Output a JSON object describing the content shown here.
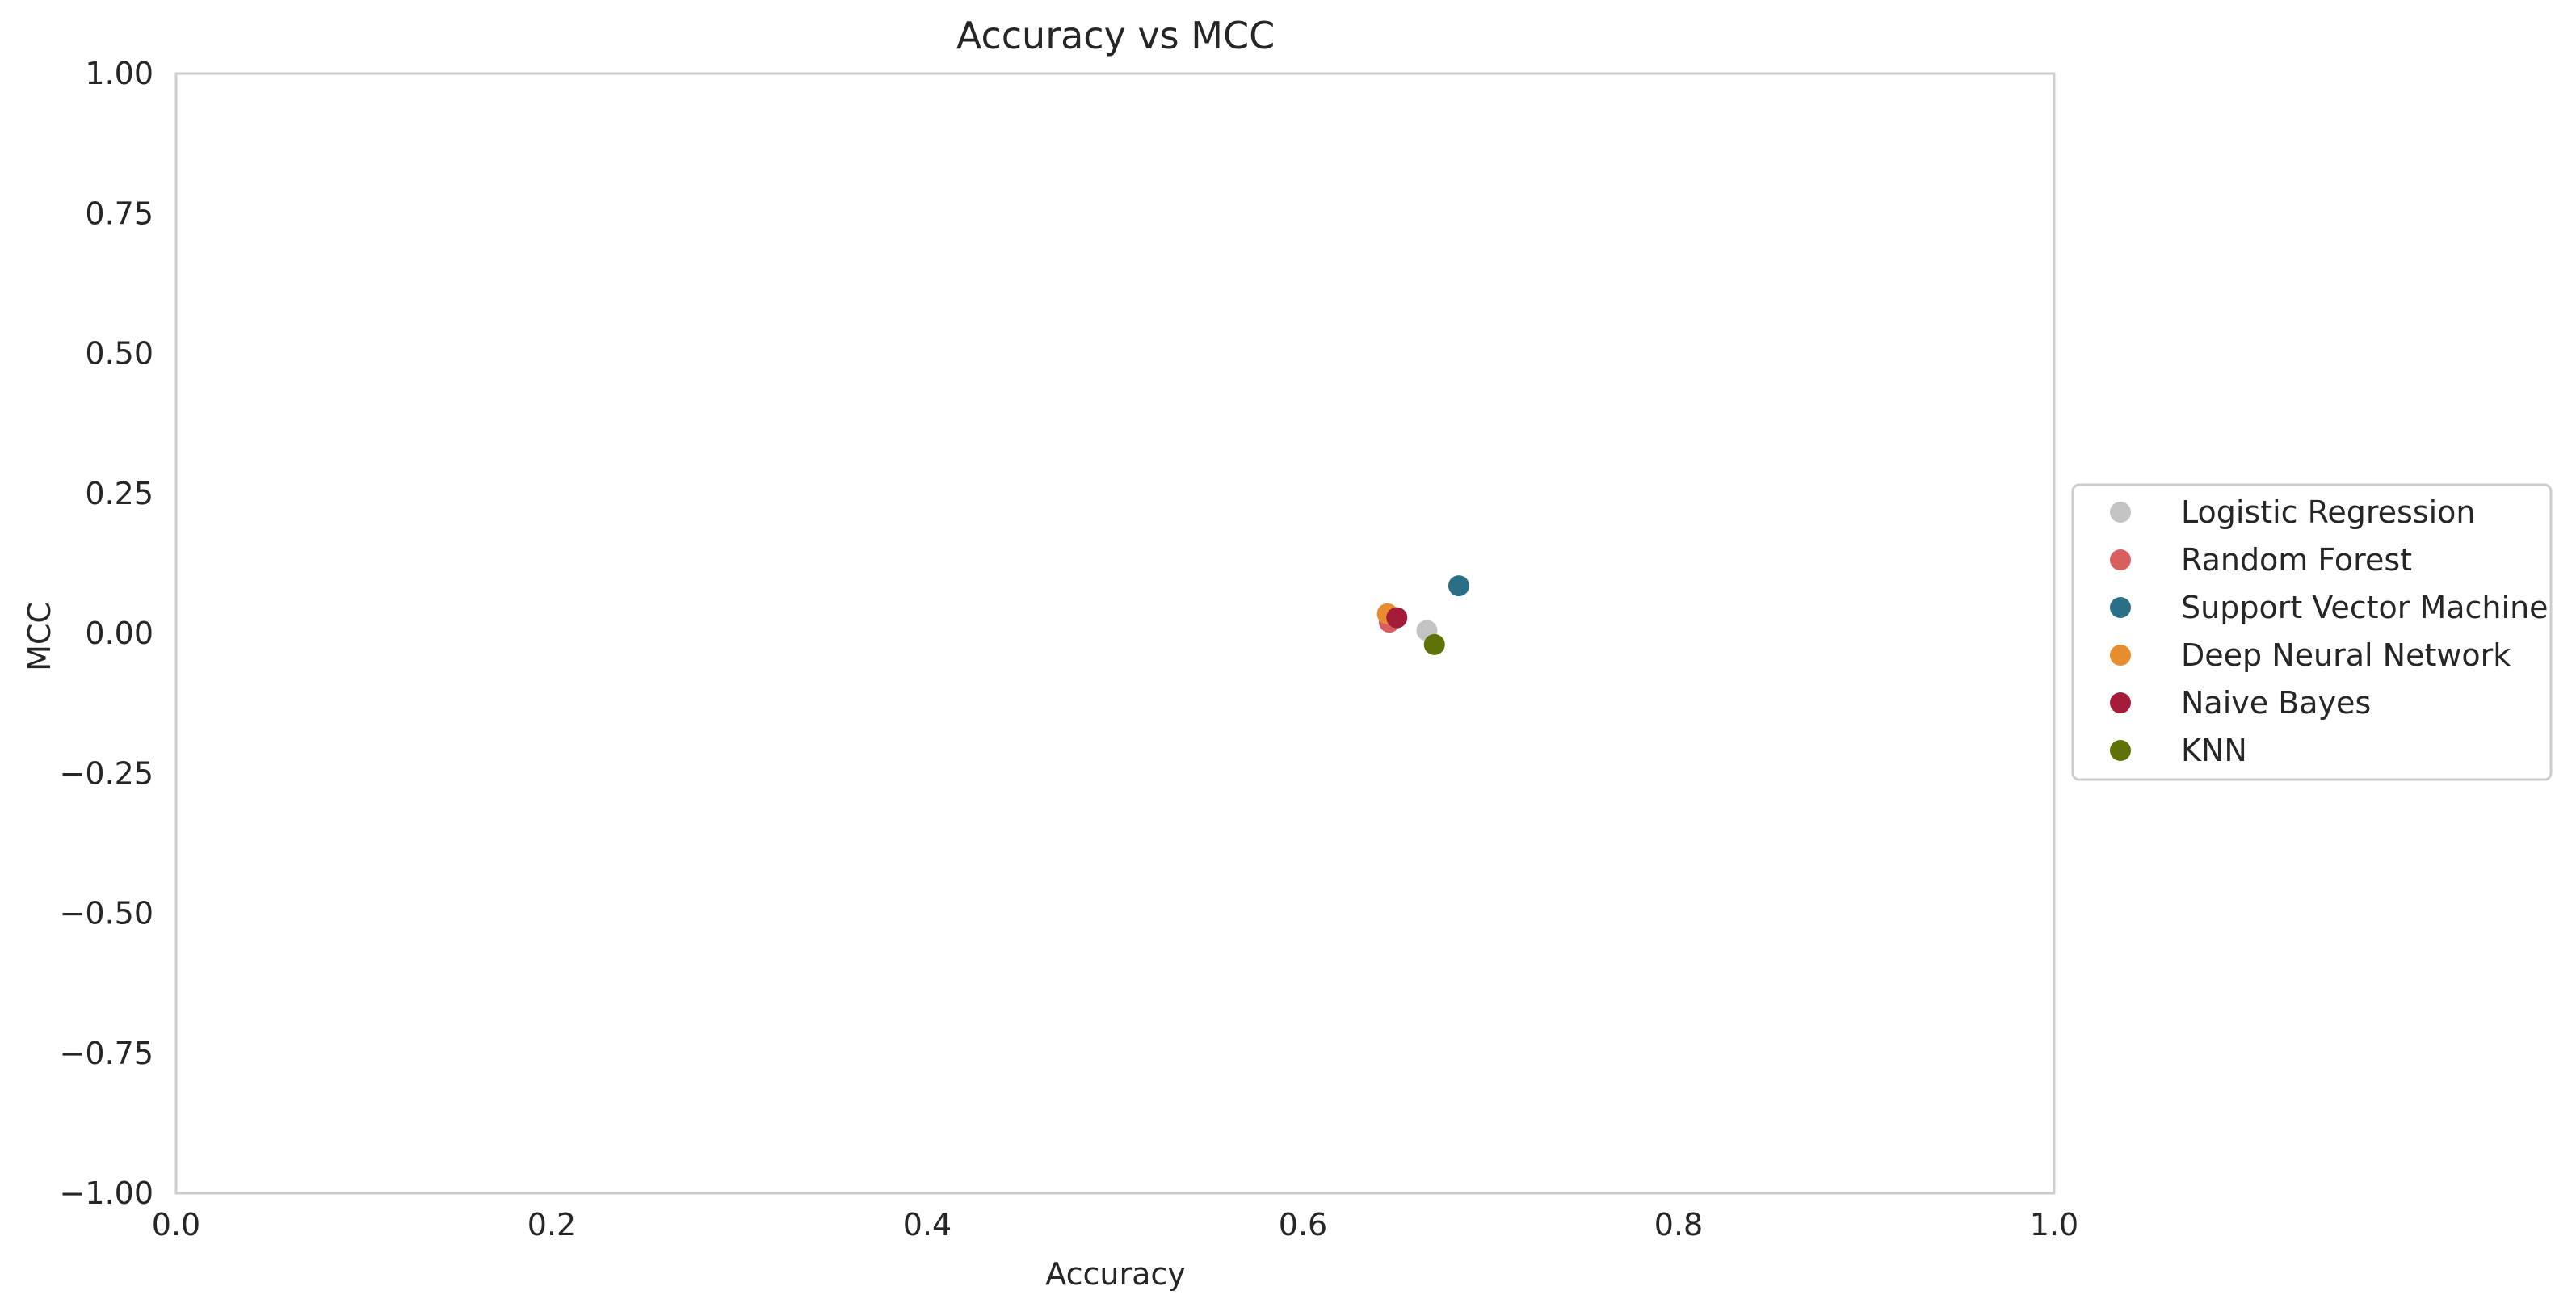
{
  "chart_data": {
    "type": "scatter",
    "title": "Accuracy vs MCC",
    "xlabel": "Accuracy",
    "ylabel": "MCC",
    "xlim": [
      0.0,
      1.0
    ],
    "ylim": [
      -1.0,
      1.0
    ],
    "x_ticks": [
      0.0,
      0.2,
      0.4,
      0.6,
      0.8,
      1.0
    ],
    "x_tick_labels": [
      "0.0",
      "0.2",
      "0.4",
      "0.6",
      "0.8",
      "1.0"
    ],
    "y_ticks": [
      1.0,
      0.75,
      0.5,
      0.25,
      0.0,
      -0.25,
      -0.5,
      -0.75,
      -1.0
    ],
    "y_tick_labels": [
      "1.00",
      "0.75",
      "0.50",
      "0.25",
      "0.00",
      "−0.25",
      "−0.50",
      "−0.75",
      "−1.00"
    ],
    "grid": false,
    "legend_position": "outside-right",
    "series": [
      {
        "name": "Logistic Regression",
        "color": "#c3c3c3",
        "points": [
          {
            "x": 0.666,
            "y": 0.005
          }
        ]
      },
      {
        "name": "Random Forest",
        "color": "#d95f5f",
        "points": [
          {
            "x": 0.646,
            "y": 0.02
          }
        ]
      },
      {
        "name": "Support Vector Machine",
        "color": "#2a6f86",
        "points": [
          {
            "x": 0.683,
            "y": 0.085
          }
        ]
      },
      {
        "name": "Deep Neural Network",
        "color": "#e88d2f",
        "points": [
          {
            "x": 0.645,
            "y": 0.035
          }
        ]
      },
      {
        "name": "Naive Bayes",
        "color": "#a51c3a",
        "points": [
          {
            "x": 0.65,
            "y": 0.028
          }
        ]
      },
      {
        "name": "KNN",
        "color": "#5e7307",
        "points": [
          {
            "x": 0.67,
            "y": -0.02
          }
        ]
      }
    ]
  }
}
